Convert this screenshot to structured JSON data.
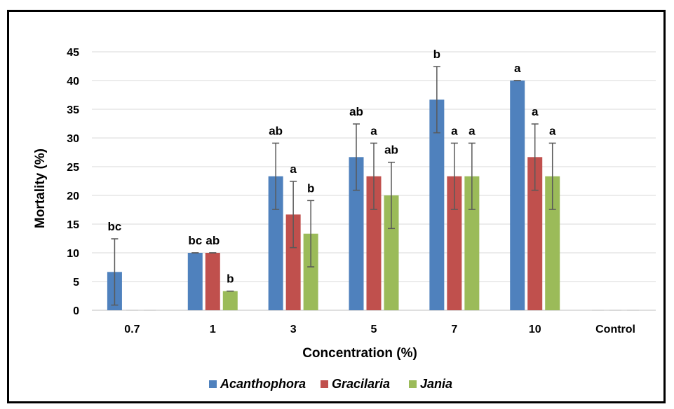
{
  "chart_data": {
    "type": "bar",
    "title": "",
    "xlabel": "Concentration (%)",
    "ylabel": "Mortality (%)",
    "ylim": [
      0,
      45
    ],
    "yticks": [
      0,
      5,
      10,
      15,
      20,
      25,
      30,
      35,
      40,
      45
    ],
    "grid": true,
    "legend_position": "bottom",
    "categories": [
      "0.7",
      "1",
      "3",
      "5",
      "7",
      "10",
      "Control"
    ],
    "series": [
      {
        "name": "Acanthophora",
        "color": "#4f81bd",
        "values": [
          6.67,
          10,
          23.33,
          26.67,
          36.67,
          40,
          0
        ],
        "errors": [
          5.77,
          0,
          5.77,
          5.77,
          5.77,
          0,
          0
        ],
        "letters": [
          "bc",
          "bc",
          "ab",
          "ab",
          "b",
          "a",
          ""
        ]
      },
      {
        "name": "Gracilaria",
        "color": "#c0504d",
        "values": [
          0,
          10,
          16.67,
          23.33,
          23.33,
          26.67,
          0
        ],
        "errors": [
          0,
          0,
          5.77,
          5.77,
          5.77,
          5.77,
          0
        ],
        "letters": [
          "",
          "ab",
          "a",
          "a",
          "a",
          "a",
          ""
        ]
      },
      {
        "name": "Jania",
        "color": "#9bbb59",
        "values": [
          0,
          3.33,
          13.33,
          20,
          23.33,
          23.33,
          0
        ],
        "errors": [
          0,
          0,
          5.77,
          5.77,
          5.77,
          5.77,
          0
        ],
        "letters": [
          "",
          "b",
          "b",
          "ab",
          "a",
          "a",
          ""
        ]
      }
    ]
  }
}
